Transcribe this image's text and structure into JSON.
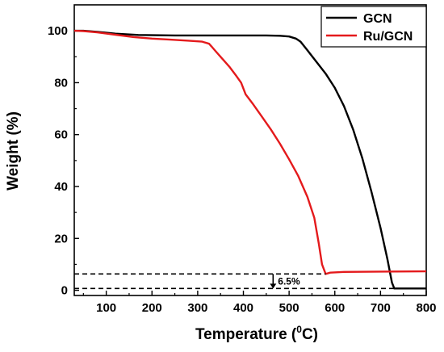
{
  "chart_data": {
    "type": "line",
    "xlabel_main": "Temperature (",
    "xlabel_sup": "0",
    "xlabel_tail": "C)",
    "ylabel": "Weight (%)",
    "xlim": [
      30,
      800
    ],
    "ylim": [
      -2,
      110
    ],
    "xticks": [
      100,
      200,
      300,
      400,
      500,
      600,
      700,
      800
    ],
    "yticks": [
      0,
      20,
      40,
      60,
      80,
      100
    ],
    "legend_position": "top-right",
    "series": [
      {
        "name": "GCN",
        "color": "#000000",
        "points": [
          [
            30,
            100
          ],
          [
            50,
            100
          ],
          [
            80,
            99.6
          ],
          [
            120,
            98.9
          ],
          [
            170,
            98.4
          ],
          [
            250,
            98.2
          ],
          [
            350,
            98.2
          ],
          [
            450,
            98.2
          ],
          [
            480,
            98.1
          ],
          [
            500,
            97.8
          ],
          [
            515,
            97.0
          ],
          [
            525,
            95.8
          ],
          [
            540,
            92.5
          ],
          [
            560,
            88
          ],
          [
            580,
            83.5
          ],
          [
            600,
            78
          ],
          [
            620,
            71
          ],
          [
            640,
            62
          ],
          [
            660,
            51
          ],
          [
            680,
            38
          ],
          [
            700,
            24
          ],
          [
            715,
            12
          ],
          [
            725,
            3
          ],
          [
            730,
            0.7
          ],
          [
            745,
            0.7
          ],
          [
            800,
            0.7
          ]
        ]
      },
      {
        "name": "Ru/GCN",
        "color": "#e41a1c",
        "points": [
          [
            30,
            100
          ],
          [
            50,
            99.9
          ],
          [
            80,
            99.4
          ],
          [
            120,
            98.5
          ],
          [
            160,
            97.6
          ],
          [
            200,
            97.0
          ],
          [
            240,
            96.6
          ],
          [
            280,
            96.2
          ],
          [
            310,
            95.8
          ],
          [
            325,
            95
          ],
          [
            330,
            94
          ],
          [
            340,
            92
          ],
          [
            350,
            90
          ],
          [
            370,
            86
          ],
          [
            385,
            82.5
          ],
          [
            395,
            80
          ],
          [
            405,
            75.5
          ],
          [
            420,
            72
          ],
          [
            440,
            67
          ],
          [
            460,
            62
          ],
          [
            480,
            56.5
          ],
          [
            500,
            50.5
          ],
          [
            520,
            44
          ],
          [
            540,
            36
          ],
          [
            555,
            28
          ],
          [
            565,
            18
          ],
          [
            572,
            10
          ],
          [
            580,
            6.3
          ],
          [
            590,
            6.8
          ],
          [
            620,
            7.1
          ],
          [
            700,
            7.2
          ],
          [
            800,
            7.3
          ]
        ]
      }
    ],
    "annotation": {
      "label": "6.5%",
      "upper_y": 6.3,
      "lower_y": 0.7,
      "upper_x_range": [
        30,
        580
      ],
      "lower_x_range": [
        30,
        730
      ],
      "arrow_x": 465
    }
  }
}
